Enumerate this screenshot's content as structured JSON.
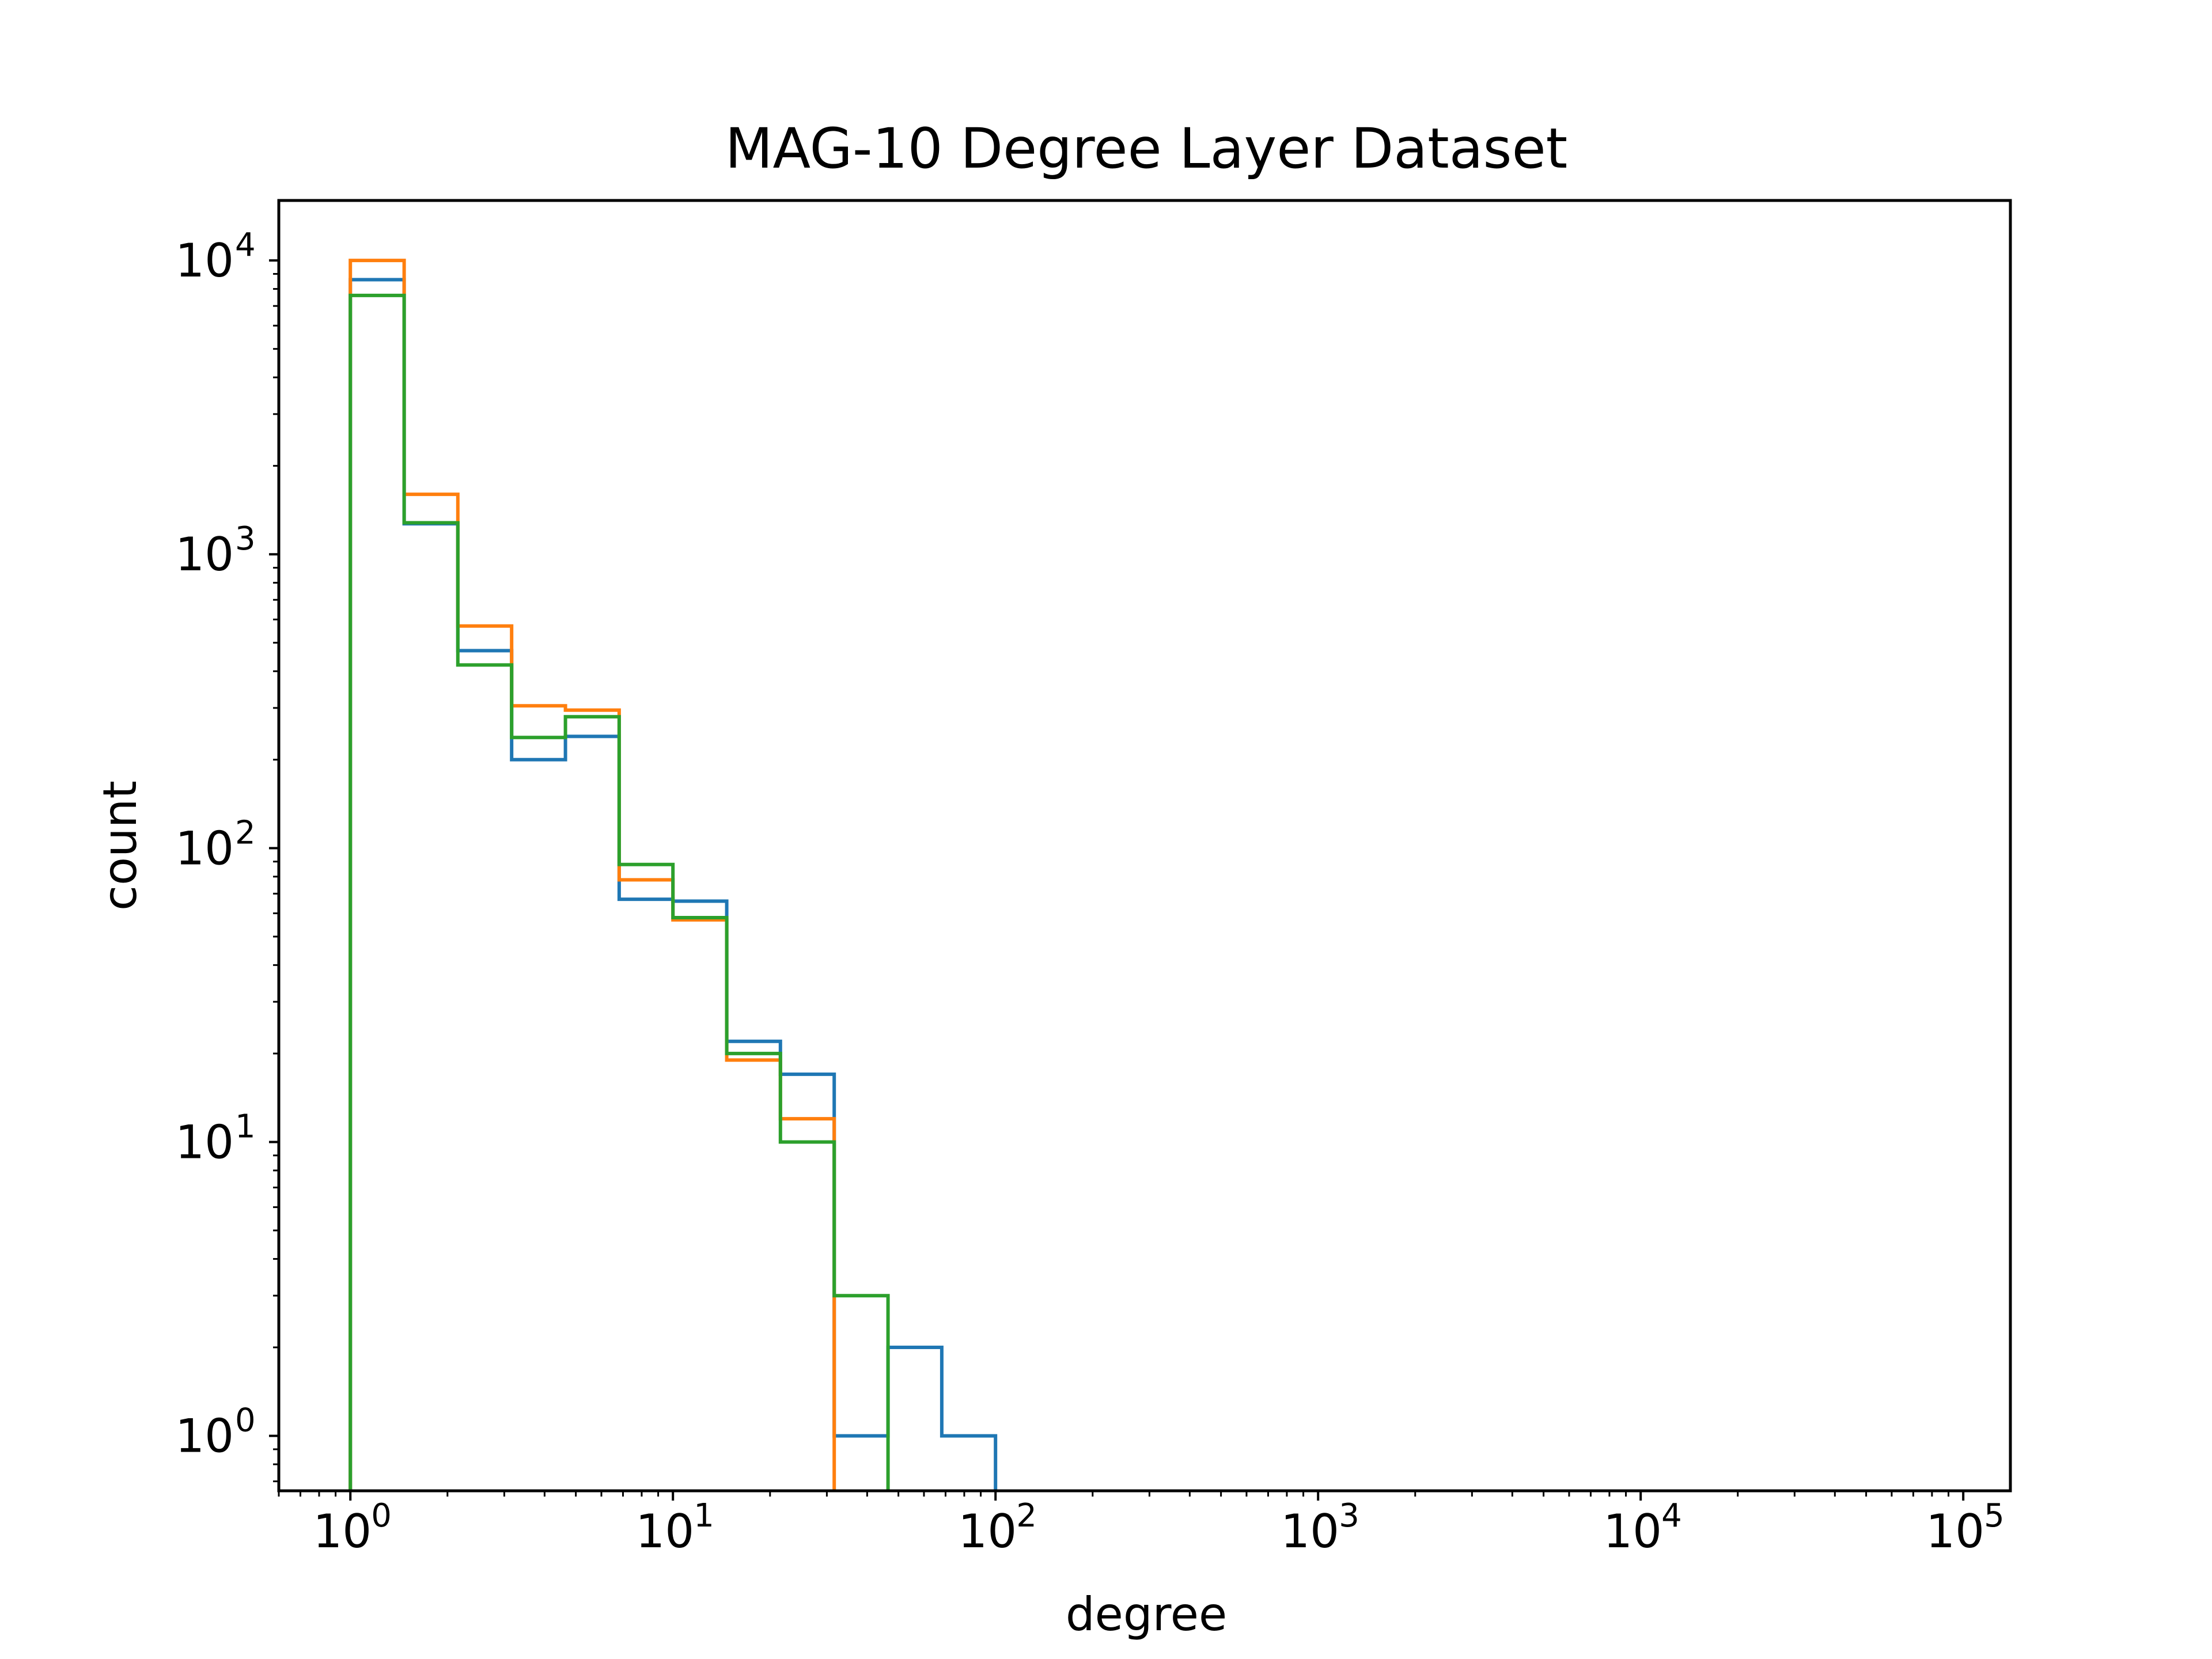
{
  "chart_data": {
    "type": "histogram-step",
    "title": "MAG-10 Degree Layer Dataset",
    "xlabel": "degree",
    "ylabel": "count",
    "xscale": "log",
    "yscale": "log",
    "xlim": [
      0.6,
      140000
    ],
    "ylim": [
      0.65,
      16000
    ],
    "xticks": [
      {
        "base": "10",
        "exp": "0",
        "value": 1
      },
      {
        "base": "10",
        "exp": "1",
        "value": 10
      },
      {
        "base": "10",
        "exp": "2",
        "value": 100
      },
      {
        "base": "10",
        "exp": "3",
        "value": 1000
      },
      {
        "base": "10",
        "exp": "4",
        "value": 10000
      },
      {
        "base": "10",
        "exp": "5",
        "value": 100000
      }
    ],
    "yticks": [
      {
        "base": "10",
        "exp": "0",
        "value": 1
      },
      {
        "base": "10",
        "exp": "1",
        "value": 10
      },
      {
        "base": "10",
        "exp": "2",
        "value": 100
      },
      {
        "base": "10",
        "exp": "3",
        "value": 1000
      },
      {
        "base": "10",
        "exp": "4",
        "value": 10000
      }
    ],
    "bin_edges": [
      1,
      1.468,
      2.154,
      3.162,
      4.642,
      6.813,
      10,
      14.68,
      21.54,
      31.62,
      46.42,
      68.13,
      100
    ],
    "grid": false,
    "legend": "none",
    "series": [
      {
        "color": "#1f77b4",
        "values": [
          8600,
          1270,
          470,
          200,
          240,
          67,
          66,
          22,
          17,
          1,
          2,
          1
        ]
      },
      {
        "color": "#ff7f0e",
        "values": [
          10000,
          1600,
          570,
          305,
          295,
          78,
          57,
          19,
          12,
          0,
          0,
          0
        ]
      },
      {
        "color": "#2ca02c",
        "values": [
          7600,
          1280,
          420,
          238,
          280,
          88,
          58,
          20,
          10,
          3,
          0,
          0
        ]
      }
    ]
  }
}
